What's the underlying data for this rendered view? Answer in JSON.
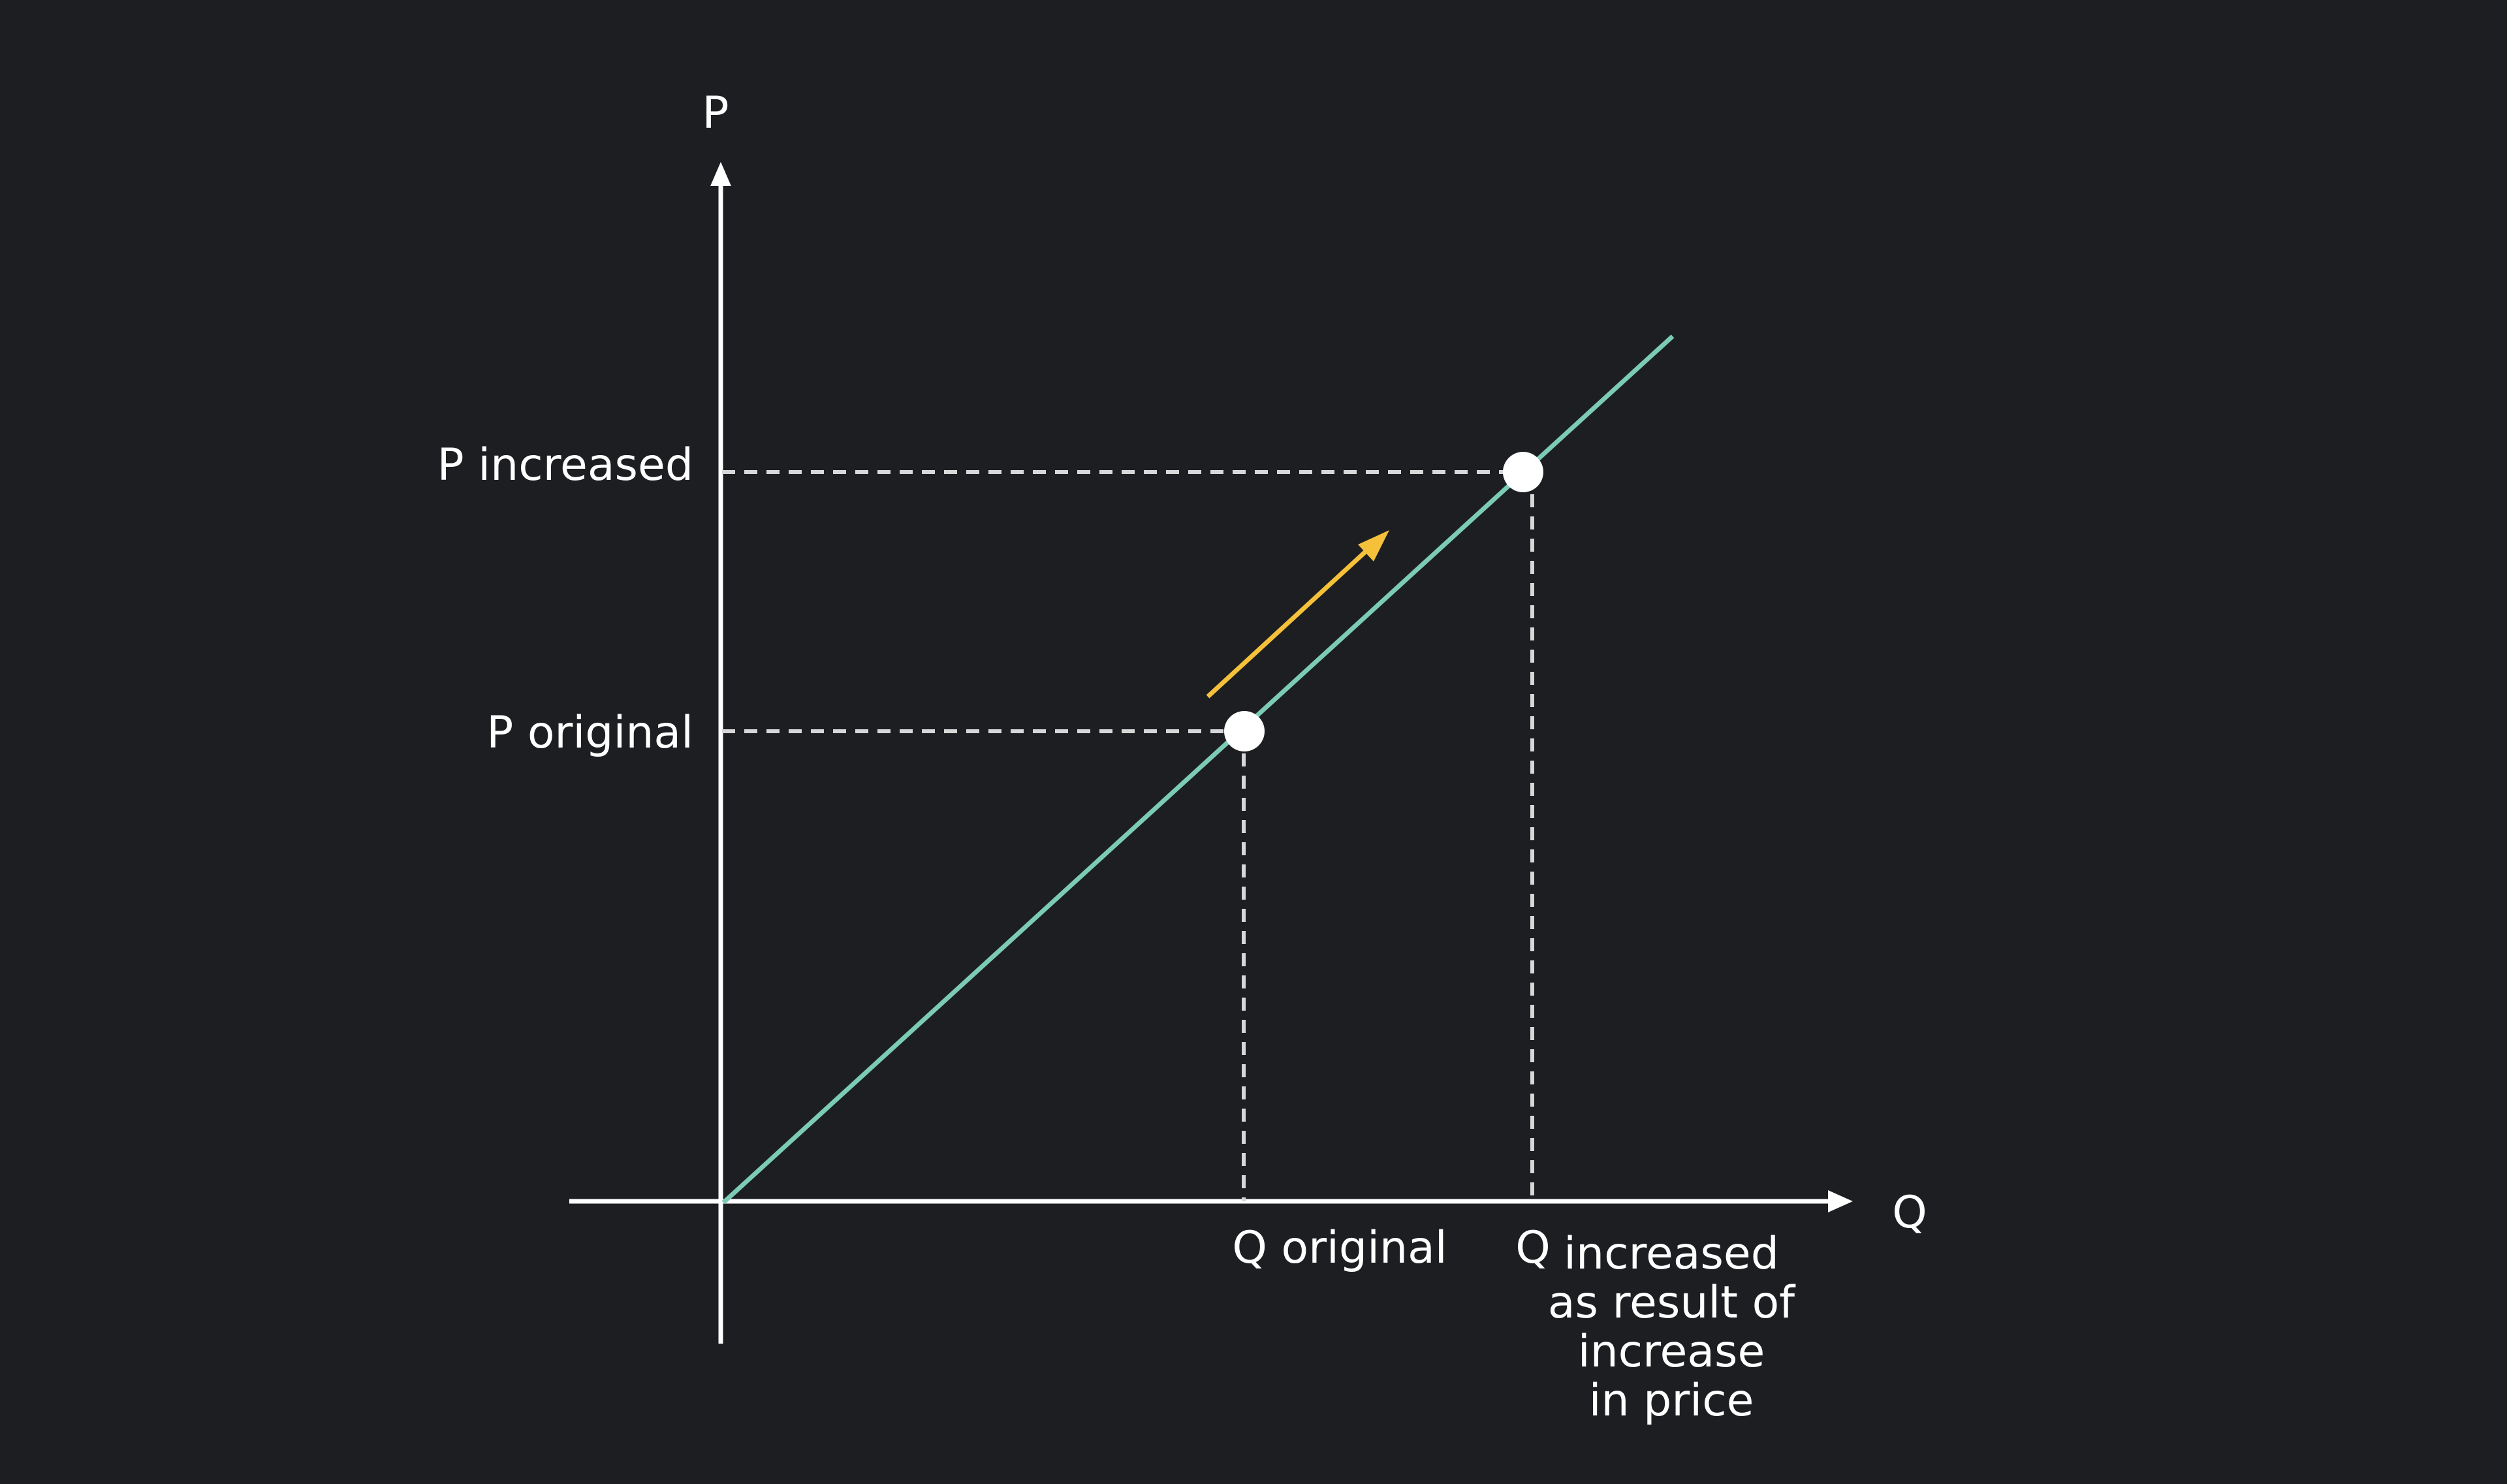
{
  "colors": {
    "background": "#1d1e22",
    "axes": "#ffffff",
    "supply_line": "#7ccbb5",
    "guide_lines": "#d7d7d7",
    "movement_arrow": "#f5c13a",
    "points": "#ffffff"
  },
  "axes": {
    "y_label": "P",
    "x_label": "Q"
  },
  "price_labels": {
    "increased": "P increased",
    "original": "P original"
  },
  "quantity_labels": {
    "original": "Q original",
    "increased_letter": "Q",
    "increased_caption": [
      "increased",
      "as result of",
      "increase",
      "in price"
    ]
  },
  "icons": {
    "movement": "arrow-up-right-icon"
  }
}
